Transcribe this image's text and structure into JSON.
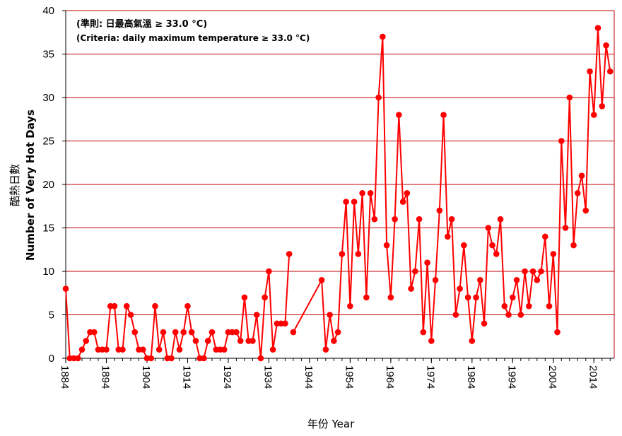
{
  "colors": {
    "series": "#ff0000",
    "grid": "#c00000",
    "axis": "#000000"
  },
  "annotation": {
    "line1": "(準則: 日最高氣溫 ≥ 33.0 °C)",
    "line2": "(Criteria: daily maximum temperature ≥ 33.0 °C)"
  },
  "chart_data": {
    "type": "line",
    "xlabel": "年份  Year",
    "ylabel_zh": "酷熱日數",
    "ylabel_en": "Number of Very Hot Days",
    "xlim": [
      1884,
      2019
    ],
    "ylim": [
      0,
      40
    ],
    "yticks": [
      0,
      5,
      10,
      15,
      20,
      25,
      30,
      35,
      40
    ],
    "xticks": [
      1884,
      1894,
      1904,
      1914,
      1924,
      1934,
      1944,
      1954,
      1964,
      1974,
      1984,
      1994,
      2004,
      2014
    ],
    "grid": true,
    "markers": "circle",
    "series": [
      {
        "name": "",
        "x": [
          1884,
          1885,
          1886,
          1887,
          1888,
          1889,
          1890,
          1891,
          1892,
          1893,
          1894,
          1895,
          1896,
          1897,
          1898,
          1899,
          1900,
          1901,
          1902,
          1903,
          1904,
          1905,
          1906,
          1907,
          1908,
          1909,
          1910,
          1911,
          1912,
          1913,
          1914,
          1915,
          1916,
          1917,
          1918,
          1919,
          1920,
          1921,
          1922,
          1923,
          1924,
          1925,
          1926,
          1927,
          1928,
          1929,
          1930,
          1931,
          1932,
          1933,
          1934,
          1935,
          1936,
          1937,
          1938,
          1939,
          1940,
          1947,
          1948,
          1949,
          1950,
          1951,
          1952,
          1953,
          1954,
          1955,
          1956,
          1957,
          1958,
          1959,
          1960,
          1961,
          1962,
          1963,
          1964,
          1965,
          1966,
          1967,
          1968,
          1969,
          1970,
          1971,
          1972,
          1973,
          1974,
          1975,
          1976,
          1977,
          1978,
          1979,
          1980,
          1981,
          1982,
          1983,
          1984,
          1985,
          1986,
          1987,
          1988,
          1989,
          1990,
          1991,
          1992,
          1993,
          1994,
          1995,
          1996,
          1997,
          1998,
          1999,
          2000,
          2001,
          2002,
          2003,
          2004,
          2005,
          2006,
          2007,
          2008,
          2009,
          2010,
          2011,
          2012,
          2013,
          2014,
          2015,
          2016,
          2017,
          2018,
          2019
        ],
        "y": [
          8,
          0,
          0,
          0,
          1,
          2,
          3,
          3,
          1,
          1,
          1,
          6,
          6,
          1,
          1,
          6,
          5,
          3,
          1,
          1,
          0,
          0,
          6,
          1,
          3,
          0,
          0,
          3,
          1,
          3,
          6,
          3,
          2,
          0,
          0,
          2,
          3,
          1,
          1,
          1,
          3,
          3,
          3,
          2,
          7,
          2,
          2,
          5,
          0,
          7,
          10,
          1,
          4,
          4,
          4,
          12,
          null,
          3,
          9,
          1,
          5,
          2,
          3,
          12,
          18,
          6,
          18,
          12,
          19,
          7,
          19,
          16,
          30,
          37,
          13,
          7,
          16,
          28,
          18,
          19,
          8,
          10,
          16,
          3,
          11,
          2,
          9,
          17,
          28,
          14,
          16,
          5,
          8,
          13,
          7,
          2,
          7,
          9,
          4,
          15,
          13,
          12,
          16,
          6,
          5,
          7,
          9,
          5,
          10,
          6,
          10,
          9,
          10,
          14,
          6,
          12,
          3,
          25,
          15,
          30,
          13,
          19,
          21,
          17,
          33,
          28,
          38,
          29,
          36,
          33
        ]
      }
    ]
  }
}
